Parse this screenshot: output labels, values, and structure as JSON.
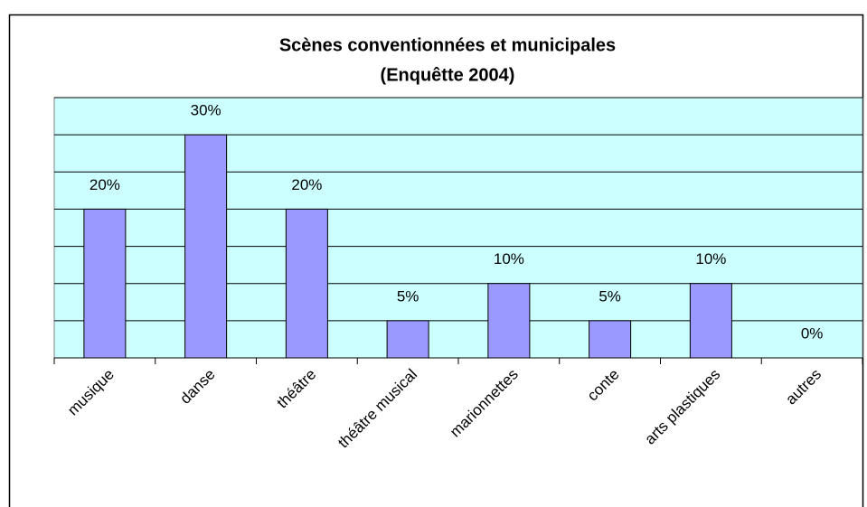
{
  "chart_data": {
    "type": "bar",
    "title": [
      "Scènes conventionnées et municipales",
      "(Enquêtte 2004)"
    ],
    "categories": [
      "musique",
      "danse",
      "théâtre",
      "théâtre musical",
      "marionnettes",
      "conte",
      "arts plastiques",
      "autres"
    ],
    "values": [
      20,
      30,
      20,
      5,
      10,
      5,
      10,
      0
    ],
    "value_labels": [
      "20%",
      "30%",
      "20%",
      "5%",
      "10%",
      "5%",
      "10%",
      "0%"
    ],
    "color": "#9999ff",
    "ylim": [
      0,
      35
    ],
    "yticks": [
      0,
      5,
      10,
      15,
      20,
      25,
      30,
      35
    ],
    "grid": true
  }
}
